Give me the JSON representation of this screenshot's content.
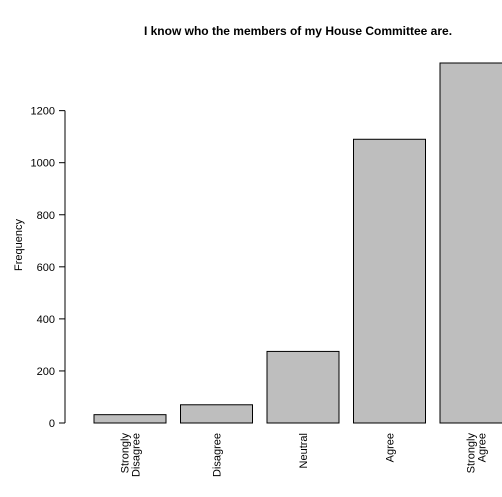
{
  "chart_data": {
    "type": "bar",
    "title": "I know who the members of my House Committee are.",
    "xlabel": "",
    "ylabel": "Frequency",
    "categories": [
      [
        "Strongly",
        "Disagree"
      ],
      [
        "Disagree"
      ],
      [
        "Neutral"
      ],
      [
        "Agree"
      ],
      [
        "Strongly",
        "Agree"
      ]
    ],
    "values": [
      32,
      70,
      275,
      1090,
      1383
    ],
    "yticks": [
      0,
      200,
      400,
      600,
      800,
      1000,
      1200
    ],
    "ylim": [
      0,
      1383
    ],
    "grid": false,
    "bar_color": "#bebebe",
    "bar_stroke": "#000000"
  }
}
